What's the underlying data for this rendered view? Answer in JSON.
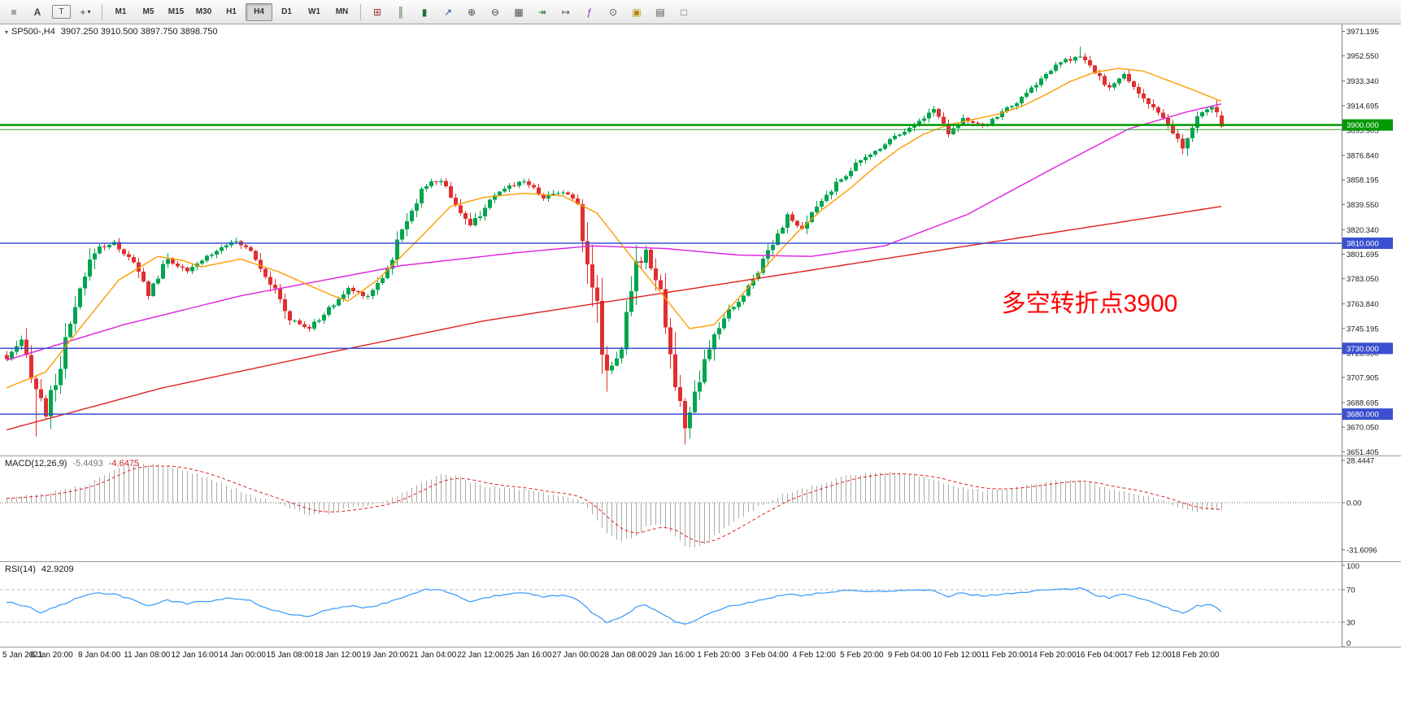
{
  "header": {
    "symbol_period": "SP500-,H4",
    "ohlc_text": "3907.250 3910.500 3897.750 3898.750"
  },
  "toolbar": {
    "left_buttons": [
      {
        "name": "charts-list-icon",
        "glyph": "≡"
      },
      {
        "name": "text-annotation-button",
        "glyph": "A"
      },
      {
        "name": "text-box-button",
        "glyph": "T"
      },
      {
        "name": "crosshair-button",
        "glyph": "+",
        "dropdown": true
      }
    ],
    "timeframes": [
      "M1",
      "M5",
      "M15",
      "M30",
      "H1",
      "H4",
      "D1",
      "W1",
      "MN"
    ],
    "active_timeframe": "H4",
    "right_buttons": [
      {
        "name": "new-order-icon",
        "glyph": "⊞",
        "color": "#a03030"
      },
      {
        "name": "bar-chart-icon",
        "glyph": "║",
        "color": "#3a6b35"
      },
      {
        "name": "candlestick-chart-icon",
        "glyph": "▮",
        "color": "#207040"
      },
      {
        "name": "line-chart-icon",
        "glyph": "↗",
        "color": "#2050a0"
      },
      {
        "name": "zoom-in-icon",
        "glyph": "⊕",
        "color": "#444444"
      },
      {
        "name": "zoom-out-icon",
        "glyph": "⊖",
        "color": "#444444"
      },
      {
        "name": "tile-windows-icon",
        "glyph": "▦",
        "color": "#555555"
      },
      {
        "name": "auto-scroll-icon",
        "glyph": "↠",
        "color": "#2e7d32"
      },
      {
        "name": "chart-shift-icon",
        "glyph": "↦",
        "color": "#555555"
      },
      {
        "name": "indicators-icon",
        "glyph": "ƒ",
        "color": "#7a2bc2"
      },
      {
        "name": "periods-icon",
        "glyph": "⊙",
        "color": "#555555"
      },
      {
        "name": "templates-icon",
        "glyph": "▣",
        "color": "#b8860b"
      },
      {
        "name": "new-chart-icon",
        "glyph": "▤",
        "color": "#555555"
      },
      {
        "name": "full-screen-icon",
        "glyph": "□",
        "color": "#555555"
      }
    ]
  },
  "colors": {
    "up": "#00a550",
    "down": "#e03030",
    "ma_fast": "#ff9c00",
    "ma_mid": "#e020e0",
    "ma_slow": "#e02020",
    "macd_hist": "#ababab",
    "macd_signal": "#e02020",
    "rsi_line": "#3399ff",
    "axis_text": "#1a1a1a",
    "badge_text": "#ffffff",
    "grid_dash": "#bbbbbb"
  },
  "chart_data": {
    "type": "candlestick+indicators",
    "symbol": "SP500-",
    "timeframe": "H4",
    "ohlc_current": {
      "open": 3907.25,
      "high": 3910.5,
      "low": 3897.75,
      "close": 3898.75
    },
    "bars": 250,
    "price_axis_values": [
      3971.195,
      3952.55,
      3933.34,
      3914.695,
      3895.905,
      3876.84,
      3858.195,
      3839.55,
      3820.34,
      3801.695,
      3783.05,
      3763.84,
      3745.195,
      3726.55,
      3707.905,
      3688.695,
      3670.05,
      3651.405
    ],
    "time_axis_labels": [
      "5 Jan 2021",
      "6 Jan 20:00",
      "8 Jan 04:00",
      "11 Jan 08:00",
      "12 Jan 16:00",
      "14 Jan 00:00",
      "15 Jan 08:00",
      "18 Jan 12:00",
      "19 Jan 20:00",
      "21 Jan 04:00",
      "22 Jan 12:00",
      "25 Jan 16:00",
      "27 Jan 00:00",
      "28 Jan 08:00",
      "29 Jan 16:00",
      "1 Feb 20:00",
      "3 Feb 04:00",
      "4 Feb 12:00",
      "5 Feb 20:00",
      "9 Feb 04:00",
      "10 Feb 12:00",
      "11 Feb 20:00",
      "14 Feb 20:00",
      "16 Feb 04:00",
      "17 Feb 12:00",
      "18 Feb 20:00"
    ],
    "horizontal_levels": [
      {
        "price": 3900.0,
        "label": "3900.000",
        "color": "#009900",
        "width": 2.5
      },
      {
        "price": 3896.4,
        "label": "",
        "color": "#33aa33",
        "width": 1
      },
      {
        "price": 3810.0,
        "label": "3810.000",
        "color": "#3a50d0",
        "width": 1.5
      },
      {
        "price": 3730.0,
        "label": "3730.000",
        "color": "#3a50d0",
        "width": 1.5
      },
      {
        "price": 3680.0,
        "label": "3680.000",
        "color": "#3a50d0",
        "width": 1.5
      }
    ],
    "annotation": {
      "text": "多空转折点3900",
      "color": "#ff0000"
    },
    "close_path": [
      [
        0,
        3722
      ],
      [
        3,
        3735
      ],
      [
        6,
        3700
      ],
      [
        8,
        3681
      ],
      [
        10,
        3705
      ],
      [
        14,
        3760
      ],
      [
        18,
        3806
      ],
      [
        22,
        3810
      ],
      [
        26,
        3795
      ],
      [
        29,
        3772
      ],
      [
        33,
        3798
      ],
      [
        37,
        3788
      ],
      [
        41,
        3800
      ],
      [
        46,
        3812
      ],
      [
        50,
        3805
      ],
      [
        54,
        3780
      ],
      [
        58,
        3752
      ],
      [
        62,
        3745
      ],
      [
        66,
        3760
      ],
      [
        70,
        3775
      ],
      [
        74,
        3770
      ],
      [
        78,
        3790
      ],
      [
        82,
        3830
      ],
      [
        86,
        3855
      ],
      [
        89,
        3858
      ],
      [
        92,
        3840
      ],
      [
        95,
        3822
      ],
      [
        98,
        3838
      ],
      [
        102,
        3852
      ],
      [
        106,
        3858
      ],
      [
        110,
        3845
      ],
      [
        114,
        3850
      ],
      [
        117,
        3840
      ],
      [
        120,
        3780
      ],
      [
        123,
        3712
      ],
      [
        126,
        3730
      ],
      [
        129,
        3790
      ],
      [
        131,
        3805
      ],
      [
        134,
        3775
      ],
      [
        137,
        3700
      ],
      [
        139,
        3672
      ],
      [
        142,
        3705
      ],
      [
        145,
        3740
      ],
      [
        148,
        3758
      ],
      [
        151,
        3770
      ],
      [
        154,
        3790
      ],
      [
        157,
        3812
      ],
      [
        160,
        3830
      ],
      [
        163,
        3820
      ],
      [
        166,
        3838
      ],
      [
        170,
        3855
      ],
      [
        174,
        3870
      ],
      [
        178,
        3880
      ],
      [
        182,
        3892
      ],
      [
        186,
        3900
      ],
      [
        190,
        3912
      ],
      [
        193,
        3895
      ],
      [
        196,
        3905
      ],
      [
        200,
        3898
      ],
      [
        204,
        3910
      ],
      [
        208,
        3920
      ],
      [
        212,
        3935
      ],
      [
        216,
        3948
      ],
      [
        220,
        3952
      ],
      [
        223,
        3940
      ],
      [
        226,
        3928
      ],
      [
        229,
        3938
      ],
      [
        232,
        3925
      ],
      [
        235,
        3912
      ],
      [
        238,
        3900
      ],
      [
        241,
        3882
      ],
      [
        244,
        3905
      ],
      [
        247,
        3915
      ],
      [
        249,
        3899
      ]
    ],
    "wick_overrides": {
      "6": {
        "low": 3663
      },
      "123": {
        "low": 3697
      },
      "139": {
        "low": 3657
      },
      "220": {
        "high": 3959.5
      }
    },
    "ma_paths": {
      "fast": [
        [
          0,
          3700
        ],
        [
          8,
          3712
        ],
        [
          15,
          3745
        ],
        [
          23,
          3782
        ],
        [
          31,
          3800
        ],
        [
          36,
          3797
        ],
        [
          40,
          3792
        ],
        [
          48,
          3798
        ],
        [
          56,
          3788
        ],
        [
          62,
          3778
        ],
        [
          67,
          3770
        ],
        [
          70,
          3766
        ],
        [
          76,
          3782
        ],
        [
          85,
          3815
        ],
        [
          91,
          3838
        ],
        [
          98,
          3845
        ],
        [
          106,
          3848
        ],
        [
          114,
          3846
        ],
        [
          121,
          3833
        ],
        [
          128,
          3800
        ],
        [
          134,
          3773
        ],
        [
          140,
          3745
        ],
        [
          145,
          3748
        ],
        [
          151,
          3772
        ],
        [
          157,
          3798
        ],
        [
          162,
          3818
        ],
        [
          167,
          3835
        ],
        [
          173,
          3852
        ],
        [
          178,
          3868
        ],
        [
          183,
          3882
        ],
        [
          188,
          3893
        ],
        [
          193,
          3900
        ],
        [
          198,
          3904
        ],
        [
          203,
          3908
        ],
        [
          208,
          3914
        ],
        [
          213,
          3923
        ],
        [
          218,
          3933
        ],
        [
          223,
          3940
        ],
        [
          228,
          3943
        ],
        [
          233,
          3941
        ],
        [
          238,
          3934
        ],
        [
          243,
          3927
        ],
        [
          249,
          3918
        ]
      ],
      "mid": [
        [
          0,
          3721
        ],
        [
          24,
          3748
        ],
        [
          48,
          3770
        ],
        [
          81,
          3793
        ],
        [
          105,
          3803
        ],
        [
          120,
          3808
        ],
        [
          135,
          3806
        ],
        [
          150,
          3801
        ],
        [
          165,
          3800
        ],
        [
          180,
          3808
        ],
        [
          197,
          3832
        ],
        [
          214,
          3866
        ],
        [
          230,
          3897
        ],
        [
          242,
          3910
        ],
        [
          249,
          3916
        ]
      ],
      "slow": [
        [
          0,
          3668
        ],
        [
          32,
          3700
        ],
        [
          65,
          3726
        ],
        [
          98,
          3751
        ],
        [
          131,
          3770
        ],
        [
          164,
          3789
        ],
        [
          197,
          3808
        ],
        [
          230,
          3827
        ],
        [
          249,
          3838
        ]
      ]
    },
    "macd": {
      "name": "MACD(12,26,9)",
      "main_value": "-5.4493",
      "signal_value": "-4.6475",
      "axis_labels": [
        {
          "text": "28.4447",
          "value": 28.4447
        },
        {
          "text": "0.00",
          "value": 0
        },
        {
          "text": "-31.6096",
          "value": -31.6096
        }
      ],
      "path": [
        [
          0,
          3
        ],
        [
          8,
          6
        ],
        [
          16,
          12
        ],
        [
          22,
          22
        ],
        [
          25,
          27
        ],
        [
          28,
          26
        ],
        [
          34,
          24
        ],
        [
          40,
          18
        ],
        [
          46,
          10
        ],
        [
          50,
          5
        ],
        [
          54,
          1
        ],
        [
          58,
          -4
        ],
        [
          62,
          -8
        ],
        [
          66,
          -7
        ],
        [
          70,
          -4
        ],
        [
          74,
          -2
        ],
        [
          78,
          1
        ],
        [
          82,
          8
        ],
        [
          86,
          15
        ],
        [
          89,
          19
        ],
        [
          92,
          18
        ],
        [
          95,
          14
        ],
        [
          98,
          11
        ],
        [
          102,
          10
        ],
        [
          106,
          9
        ],
        [
          110,
          6
        ],
        [
          114,
          5
        ],
        [
          117,
          2
        ],
        [
          120,
          -8
        ],
        [
          123,
          -20
        ],
        [
          126,
          -26
        ],
        [
          129,
          -22
        ],
        [
          131,
          -16
        ],
        [
          134,
          -14
        ],
        [
          137,
          -22
        ],
        [
          139,
          -29
        ],
        [
          141,
          -31
        ],
        [
          143,
          -28
        ],
        [
          145,
          -22
        ],
        [
          148,
          -15
        ],
        [
          151,
          -9
        ],
        [
          154,
          -3
        ],
        [
          157,
          2
        ],
        [
          160,
          7
        ],
        [
          163,
          9
        ],
        [
          166,
          12
        ],
        [
          170,
          16
        ],
        [
          174,
          19
        ],
        [
          178,
          20
        ],
        [
          182,
          20
        ],
        [
          186,
          18
        ],
        [
          190,
          16
        ],
        [
          193,
          12
        ],
        [
          196,
          10
        ],
        [
          200,
          8
        ],
        [
          204,
          9
        ],
        [
          208,
          11
        ],
        [
          212,
          13
        ],
        [
          216,
          15
        ],
        [
          220,
          15
        ],
        [
          223,
          12
        ],
        [
          226,
          9
        ],
        [
          229,
          8
        ],
        [
          232,
          6
        ],
        [
          235,
          3
        ],
        [
          238,
          0
        ],
        [
          241,
          -4
        ],
        [
          244,
          -6
        ],
        [
          247,
          -5
        ],
        [
          249,
          -5.45
        ]
      ]
    },
    "rsi": {
      "name": "RSI(14)",
      "value": "42.9209",
      "axis_labels": [
        {
          "text": "100",
          "value": 100
        },
        {
          "text": "70",
          "value": 70
        },
        {
          "text": "30",
          "value": 30
        },
        {
          "text": "0",
          "value": 0
        }
      ],
      "levels": [
        70,
        30
      ],
      "path": [
        [
          0,
          55
        ],
        [
          4,
          50
        ],
        [
          7,
          42
        ],
        [
          10,
          48
        ],
        [
          14,
          58
        ],
        [
          18,
          66
        ],
        [
          22,
          65
        ],
        [
          26,
          58
        ],
        [
          29,
          50
        ],
        [
          33,
          57
        ],
        [
          37,
          53
        ],
        [
          41,
          56
        ],
        [
          46,
          60
        ],
        [
          50,
          56
        ],
        [
          54,
          46
        ],
        [
          58,
          40
        ],
        [
          62,
          38
        ],
        [
          66,
          45
        ],
        [
          70,
          50
        ],
        [
          74,
          48
        ],
        [
          78,
          54
        ],
        [
          82,
          63
        ],
        [
          86,
          70
        ],
        [
          89,
          71
        ],
        [
          92,
          63
        ],
        [
          95,
          56
        ],
        [
          98,
          60
        ],
        [
          102,
          64
        ],
        [
          106,
          66
        ],
        [
          110,
          61
        ],
        [
          114,
          63
        ],
        [
          117,
          58
        ],
        [
          120,
          42
        ],
        [
          123,
          30
        ],
        [
          126,
          36
        ],
        [
          129,
          48
        ],
        [
          131,
          52
        ],
        [
          134,
          42
        ],
        [
          137,
          31
        ],
        [
          139,
          27
        ],
        [
          142,
          35
        ],
        [
          145,
          44
        ],
        [
          148,
          49
        ],
        [
          151,
          52
        ],
        [
          154,
          57
        ],
        [
          157,
          61
        ],
        [
          160,
          65
        ],
        [
          163,
          62
        ],
        [
          166,
          66
        ],
        [
          170,
          68
        ],
        [
          174,
          69
        ],
        [
          178,
          68
        ],
        [
          182,
          69
        ],
        [
          186,
          69
        ],
        [
          190,
          70
        ],
        [
          193,
          62
        ],
        [
          196,
          66
        ],
        [
          200,
          62
        ],
        [
          204,
          65
        ],
        [
          208,
          67
        ],
        [
          212,
          69
        ],
        [
          216,
          71
        ],
        [
          220,
          72
        ],
        [
          223,
          64
        ],
        [
          226,
          60
        ],
        [
          229,
          64
        ],
        [
          232,
          60
        ],
        [
          235,
          54
        ],
        [
          238,
          48
        ],
        [
          241,
          41
        ],
        [
          244,
          50
        ],
        [
          247,
          52
        ],
        [
          249,
          42.92
        ]
      ]
    }
  }
}
